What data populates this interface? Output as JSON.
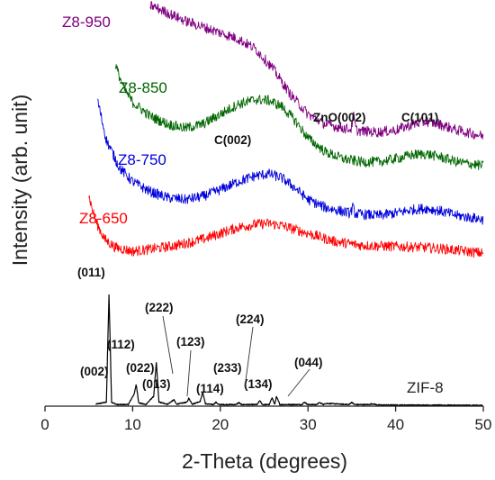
{
  "chart_data": {
    "type": "line",
    "title": "",
    "xlabel": "2-Theta (degrees)",
    "ylabel": "Intensity (arb. unit)",
    "xlim": [
      0,
      50
    ],
    "ylim": [
      0,
      100
    ],
    "x_ticks": [
      0,
      10,
      20,
      30,
      40,
      50
    ],
    "x_tick_labels": [
      "0",
      "10",
      "20",
      "30",
      "40",
      "50"
    ],
    "grid": false,
    "y_tick_labels_shown": false,
    "curves_are_noisy": true,
    "series": [
      {
        "name": "ZIF-8",
        "color": "#000000",
        "x": [
          5.8,
          7.0,
          7.3,
          7.6,
          8.2,
          9.5,
          10.2,
          10.4,
          10.7,
          11.5,
          12.4,
          12.7,
          13.0,
          14.0,
          14.7,
          15.0,
          16.2,
          16.4,
          16.8,
          17.7,
          18.0,
          18.3,
          19.2,
          19.5,
          19.8,
          21.8,
          22.1,
          22.4,
          24.2,
          24.5,
          24.8,
          25.6,
          25.9,
          26.2,
          26.4,
          26.8,
          29.3,
          29.6,
          30.0,
          31.0,
          31.3,
          31.8,
          32.0,
          34.7,
          35.0,
          35.3,
          37.0,
          37.3,
          38.0,
          50.0
        ],
        "y": [
          0.5,
          1.0,
          28.0,
          1.0,
          0.4,
          0.4,
          3.2,
          5.5,
          0.8,
          0.4,
          2.5,
          11.0,
          1.0,
          0.5,
          1.6,
          0.5,
          1.0,
          2.0,
          0.5,
          1.2,
          3.5,
          0.6,
          0.4,
          1.0,
          0.4,
          0.4,
          0.9,
          0.4,
          0.4,
          1.4,
          0.4,
          0.4,
          2.2,
          0.4,
          2.4,
          0.4,
          0.4,
          1.0,
          0.4,
          0.4,
          0.9,
          0.4,
          0.7,
          0.4,
          1.0,
          0.4,
          0.4,
          0.6,
          0.3,
          0.2
        ]
      },
      {
        "name": "Z8-650",
        "color": "#ff0000",
        "x": [
          5.0,
          5.7,
          6.8,
          8.0,
          10.0,
          12.0,
          15.0,
          18.0,
          20.0,
          22.0,
          24.0,
          25.5,
          27.0,
          30.0,
          33.0,
          36.0,
          40.0,
          43.0,
          46.0,
          50.0
        ],
        "y": [
          53,
          47,
          42,
          40,
          39,
          39.5,
          40.5,
          42,
          43.5,
          45,
          45.8,
          46,
          45.5,
          43.5,
          41.5,
          40.5,
          40.2,
          40,
          39.5,
          38.5
        ]
      },
      {
        "name": "Z8-750",
        "color": "#0000dd",
        "x": [
          6.0,
          7.0,
          8.5,
          10.0,
          12.0,
          14.0,
          16.0,
          18.0,
          20.0,
          22.0,
          24.0,
          25.5,
          27.0,
          28.5,
          30.0,
          32.0,
          35.0,
          38.0,
          40.0,
          42.0,
          43.5,
          45.0,
          47.0,
          50.0
        ],
        "y": [
          77,
          67,
          60,
          56.5,
          54,
          52.5,
          52,
          52.8,
          54.5,
          56.5,
          58,
          58.5,
          57.5,
          55,
          52,
          50,
          48.5,
          48,
          48.6,
          49.5,
          49.8,
          49.2,
          48,
          47
        ]
      },
      {
        "name": "Z8-850",
        "color": "#006600",
        "x": [
          8.0,
          9.0,
          10.0,
          12.0,
          14.0,
          16.0,
          18.0,
          20.0,
          22.0,
          24.0,
          25.5,
          27.0,
          28.5,
          30.0,
          32.0,
          34.0,
          36.0,
          38.0,
          40.0,
          42.0,
          43.5,
          45.0,
          47.0,
          50.0
        ],
        "y": [
          86,
          80,
          76.5,
          73,
          71,
          70,
          71,
          73.5,
          76,
          77.2,
          77,
          75.5,
          72,
          67.5,
          64,
          62.3,
          61.5,
          61.5,
          62.3,
          63.3,
          63.5,
          62.8,
          61.5,
          60.5
        ]
      },
      {
        "name": "Z8-950",
        "color": "#800080",
        "x": [
          12.0,
          14.0,
          16.0,
          18.0,
          20.0,
          22.0,
          24.0,
          26.0,
          28.0,
          30.0,
          32.0,
          34.0,
          36.0,
          38.0,
          40.0,
          42.0,
          43.5,
          45.0,
          47.0,
          50.0
        ],
        "y": [
          101,
          99,
          97,
          95.5,
          94,
          92.5,
          90,
          85,
          78.5,
          73.5,
          71,
          70,
          69.3,
          69,
          69.5,
          71,
          71.7,
          71,
          69.5,
          68
        ]
      }
    ],
    "sharp_peaks": [
      {
        "series": "Z8-950",
        "x": 35.2,
        "height": 3.5
      },
      {
        "series": "Z8-750",
        "x": 35.1,
        "height": 1.5
      }
    ],
    "series_labels": [
      "Z8-950",
      "Z8-850",
      "Z8-750",
      "Z8-650",
      "ZIF-8"
    ],
    "annotations": [
      {
        "text": "ZnO(002)",
        "target_x": 35.2
      },
      {
        "text": "C(101)",
        "target_x": 43.5
      },
      {
        "text": "C(002)",
        "target_x": 25.0
      },
      {
        "text": "(011)",
        "target_x": 7.3
      },
      {
        "text": "(002)",
        "target_x": 10.4
      },
      {
        "text": "(112)",
        "target_x": 12.7
      },
      {
        "text": "(022)",
        "target_x": 14.7
      },
      {
        "text": "(013)",
        "target_x": 16.4
      },
      {
        "text": "(222)",
        "target_x": 18.0
      },
      {
        "text": "(123)",
        "target_x": 19.5
      },
      {
        "text": "(114)",
        "target_x": 22.1
      },
      {
        "text": "(233)",
        "target_x": 24.5
      },
      {
        "text": "(224)",
        "target_x": 25.9
      },
      {
        "text": "(134)",
        "target_x": 26.4
      },
      {
        "text": "(044)",
        "target_x": 29.6
      }
    ]
  }
}
